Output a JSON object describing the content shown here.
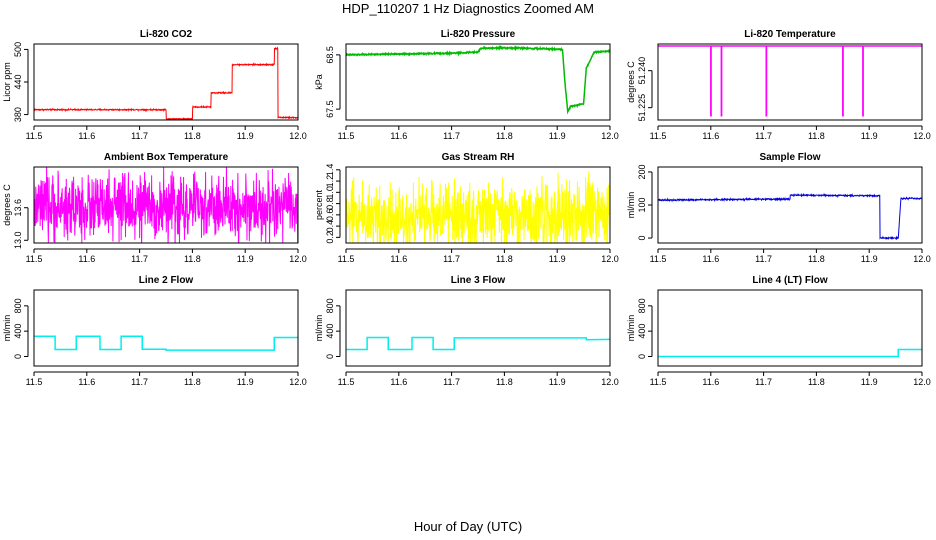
{
  "figure": {
    "title": "HDP_110207  1 Hz Diagnostics Zoomed AM",
    "xlabel": "Hour of Day (UTC)"
  },
  "chart_data": [
    {
      "type": "line",
      "title": "Li-820 CO2",
      "ylabel": "Licor ppm",
      "color": "#ff0000",
      "xlim": [
        11.5,
        12.0
      ],
      "ylim": [
        370,
        510
      ],
      "xticks": [
        "11.5",
        "11.6",
        "11.7",
        "11.8",
        "11.9",
        "12.0"
      ],
      "yticks": [
        "380",
        "440",
        "500"
      ],
      "noise": 1,
      "x": [
        11.5,
        11.75,
        11.75,
        11.8,
        11.8,
        11.835,
        11.835,
        11.875,
        11.875,
        11.955,
        11.955,
        11.962,
        11.962,
        12.0
      ],
      "y": [
        389,
        389,
        372,
        372,
        394,
        394,
        420,
        420,
        472,
        472,
        502,
        502,
        375,
        374
      ]
    },
    {
      "type": "line",
      "title": "Li-820 Pressure",
      "ylabel": "kPa",
      "color": "#00bb00",
      "xlim": [
        11.5,
        12.0
      ],
      "ylim": [
        67.3,
        68.7
      ],
      "xticks": [
        "11.5",
        "11.6",
        "11.7",
        "11.8",
        "11.9",
        "12.0"
      ],
      "yticks": [
        "67.5",
        "68.5"
      ],
      "noise": 0.01,
      "x": [
        11.5,
        11.62,
        11.7,
        11.75,
        11.755,
        11.8,
        11.85,
        11.91,
        11.915,
        11.92,
        11.925,
        11.95,
        11.955,
        11.97,
        12.0
      ],
      "y": [
        68.5,
        68.52,
        68.53,
        68.55,
        68.62,
        68.63,
        68.62,
        68.6,
        67.95,
        67.45,
        67.55,
        67.6,
        68.25,
        68.55,
        68.57
      ]
    },
    {
      "type": "line",
      "title": "Li-820 Temperature",
      "ylabel": "degrees C",
      "color": "#ff00ff",
      "xlim": [
        11.5,
        12.0
      ],
      "ylim": [
        51.22,
        51.2508
      ],
      "xticks": [
        "11.5",
        "11.6",
        "11.7",
        "11.8",
        "11.9",
        "12.0"
      ],
      "yticks": [
        "51.225",
        "51.240"
      ],
      "noise": 0,
      "x": [
        11.5,
        11.6,
        11.6,
        11.6005,
        11.6005,
        11.62,
        11.62,
        11.6205,
        11.6205,
        11.705,
        11.705,
        11.7055,
        11.7055,
        11.85,
        11.85,
        11.8505,
        11.8505,
        11.888,
        11.888,
        11.8885,
        11.8885,
        12.0
      ],
      "y": [
        51.25,
        51.25,
        51.2217,
        51.2217,
        51.25,
        51.25,
        51.2217,
        51.2217,
        51.25,
        51.25,
        51.2217,
        51.2217,
        51.25,
        51.25,
        51.2217,
        51.2217,
        51.25,
        51.25,
        51.2217,
        51.2217,
        51.25,
        51.25
      ]
    },
    {
      "type": "line",
      "title": "Ambient Box Temperature",
      "ylabel": "degrees C",
      "color": "#ff00ff",
      "xlim": [
        11.5,
        12.0
      ],
      "ylim": [
        12.95,
        14.35
      ],
      "xticks": [
        "11.5",
        "11.6",
        "11.7",
        "11.8",
        "11.9",
        "12.0"
      ],
      "yticks": [
        "13.0",
        "13.6"
      ],
      "noise": 0.5,
      "x": [
        11.5,
        12.0
      ],
      "y": [
        13.6,
        13.6
      ]
    },
    {
      "type": "line",
      "title": "Gas Stream RH",
      "ylabel": "percent",
      "color": "#ffff00",
      "xlim": [
        11.5,
        12.0
      ],
      "ylim": [
        0.1,
        1.45
      ],
      "xticks": [
        "11.5",
        "11.6",
        "11.7",
        "11.8",
        "11.9",
        "12.0"
      ],
      "yticks": [
        "0.2",
        "0.4",
        "0.6",
        "0.8",
        "1.0",
        "1.2",
        "1.4"
      ],
      "noise": 0.5,
      "x": [
        11.5,
        12.0
      ],
      "y": [
        0.58,
        0.58
      ]
    },
    {
      "type": "line",
      "title": "Sample Flow",
      "ylabel": "ml/min",
      "color": "#0000dd",
      "xlim": [
        11.5,
        12.0
      ],
      "ylim": [
        -15,
        215
      ],
      "xticks": [
        "11.5",
        "11.6",
        "11.7",
        "11.8",
        "11.9",
        "12.0"
      ],
      "yticks": [
        "0",
        "100",
        "200"
      ],
      "noise": 2,
      "x": [
        11.5,
        11.75,
        11.75,
        11.92,
        11.92,
        11.95,
        11.955,
        11.96,
        11.96,
        12.0
      ],
      "y": [
        115,
        118,
        130,
        128,
        0,
        0,
        0,
        118,
        120,
        120
      ]
    },
    {
      "type": "line",
      "title": "Line 2 Flow",
      "ylabel": "ml/min",
      "color": "#00eeee",
      "xlim": [
        11.5,
        12.0
      ],
      "ylim": [
        -150,
        1050
      ],
      "xticks": [
        "11.5",
        "11.6",
        "11.7",
        "11.8",
        "11.9",
        "12.0"
      ],
      "yticks": [
        "0",
        "400",
        "800"
      ],
      "noise": 0,
      "x": [
        11.5,
        11.54,
        11.54,
        11.58,
        11.58,
        11.625,
        11.625,
        11.665,
        11.665,
        11.705,
        11.705,
        11.75,
        11.75,
        11.955,
        11.955,
        12.0
      ],
      "y": [
        320,
        320,
        110,
        110,
        320,
        320,
        110,
        110,
        320,
        320,
        115,
        115,
        100,
        100,
        300,
        300
      ]
    },
    {
      "type": "line",
      "title": "Line 3 Flow",
      "ylabel": "ml/min",
      "color": "#00eeee",
      "xlim": [
        11.5,
        12.0
      ],
      "ylim": [
        -150,
        1050
      ],
      "xticks": [
        "11.5",
        "11.6",
        "11.7",
        "11.8",
        "11.9",
        "12.0"
      ],
      "yticks": [
        "0",
        "400",
        "800"
      ],
      "noise": 0,
      "x": [
        11.5,
        11.54,
        11.54,
        11.58,
        11.58,
        11.625,
        11.625,
        11.665,
        11.665,
        11.705,
        11.705,
        11.955,
        11.955,
        12.0
      ],
      "y": [
        110,
        110,
        300,
        300,
        110,
        110,
        300,
        300,
        110,
        110,
        295,
        295,
        265,
        270
      ]
    },
    {
      "type": "line",
      "title": "Line 4 (LT) Flow",
      "ylabel": "ml/min",
      "color": "#00eeee",
      "xlim": [
        11.5,
        12.0
      ],
      "ylim": [
        -150,
        1050
      ],
      "xticks": [
        "11.5",
        "11.6",
        "11.7",
        "11.8",
        "11.9",
        "12.0"
      ],
      "yticks": [
        "0",
        "400",
        "800"
      ],
      "noise": 0,
      "x": [
        11.5,
        11.955,
        11.955,
        12.0
      ],
      "y": [
        0,
        0,
        110,
        110
      ]
    }
  ]
}
